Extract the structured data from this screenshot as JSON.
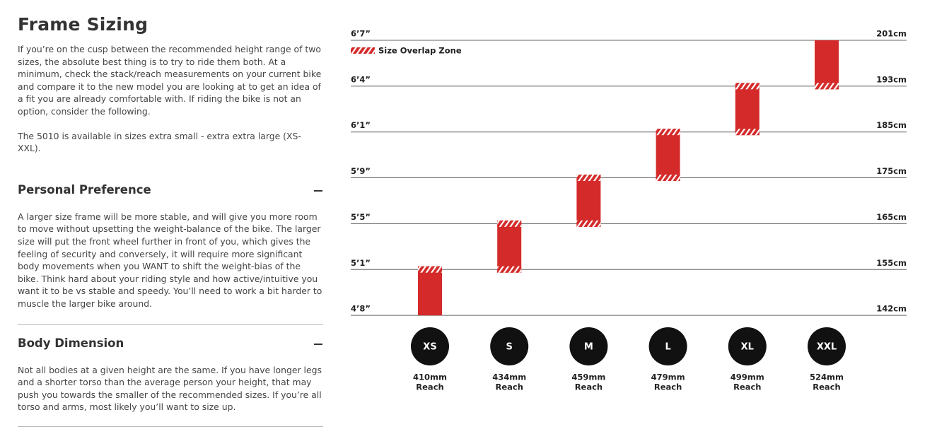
{
  "header": {
    "title": "Frame Sizing",
    "paragraphs": [
      "If you’re on the cusp between the recommended height range of two sizes, the absolute best thing is to try to ride them both. At a minimum, check the stack/reach measurements on your current bike and compare it to the new model you are looking at to get an idea of a fit you are already comfortable with. If riding the bike is not an option, consider the following.",
      "The 5010 is available in sizes extra small - extra extra large (XS-XXL)."
    ]
  },
  "sections": [
    {
      "title": "Personal Preference",
      "body": "A larger size frame will be more stable, and will give you more room to move without upsetting the weight-balance of the bike. The larger size will put the front wheel further in front of you, which gives the feeling of security and conversely, it will require more significant body movements when you WANT to shift the weight-bias of the bike. Think hard about your riding style and how active/intuitive you want it to be vs stable and speedy. You’ll need to work a bit harder to muscle the larger bike around."
    },
    {
      "title": "Body Dimension",
      "body": "Not all bodies at a given height are the same. If you have longer legs and a shorter torso than the average person your height, that may push you towards the smaller of the recommended sizes. If you’re all torso and arms, most likely you’ll want to size up."
    }
  ],
  "sizing_chart": {
    "legend": "Size Overlap Zone",
    "reach_caption": "Reach",
    "levels": [
      {
        "imperial": "6’7”",
        "metric": "201cm"
      },
      {
        "imperial": "6’4”",
        "metric": "193cm"
      },
      {
        "imperial": "6’1”",
        "metric": "185cm"
      },
      {
        "imperial": "5’9”",
        "metric": "175cm"
      },
      {
        "imperial": "5’5”",
        "metric": "165cm"
      },
      {
        "imperial": "5’1”",
        "metric": "155cm"
      },
      {
        "imperial": "4’8”",
        "metric": "142cm"
      }
    ],
    "sizes": [
      {
        "label": "XS",
        "reach": "410mm"
      },
      {
        "label": "S",
        "reach": "434mm"
      },
      {
        "label": "M",
        "reach": "459mm"
      },
      {
        "label": "L",
        "reach": "479mm"
      },
      {
        "label": "XL",
        "reach": "499mm"
      },
      {
        "label": "XXL",
        "reach": "524mm"
      }
    ]
  }
}
